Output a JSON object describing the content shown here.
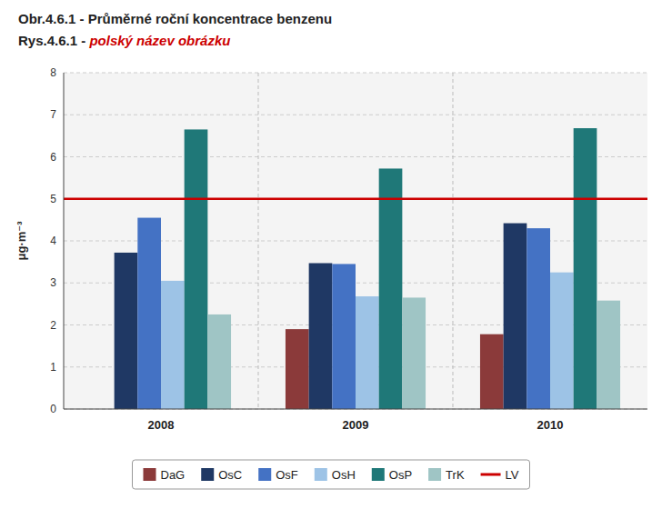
{
  "chart_data": {
    "type": "bar",
    "title": "Obr.4.6.1 - Průměrné roční koncentrace benzenu",
    "subtitle": [
      "Rys.4.6.1 - ",
      "polský název obrázku"
    ],
    "categories": [
      "2008",
      "2009",
      "2010"
    ],
    "series": [
      {
        "name": "DaG",
        "color": "#8B3A3A",
        "values": [
          0.0,
          1.9,
          1.78
        ]
      },
      {
        "name": "OsC",
        "color": "#1F3864",
        "values": [
          3.72,
          3.47,
          4.42
        ]
      },
      {
        "name": "OsF",
        "color": "#4472C4",
        "values": [
          4.55,
          3.45,
          4.3
        ]
      },
      {
        "name": "OsH",
        "color": "#9DC3E6",
        "values": [
          3.05,
          2.68,
          3.25
        ]
      },
      {
        "name": "OsP",
        "color": "#1F7878",
        "values": [
          6.65,
          5.72,
          6.68
        ]
      },
      {
        "name": "TrK",
        "color": "#9FC5C5",
        "values": [
          2.25,
          2.65,
          2.58
        ]
      }
    ],
    "reference_lines": [
      {
        "name": "LV",
        "value": 5.0,
        "color": "#CC0000"
      }
    ],
    "ylabel": "μg·m⁻³",
    "ylim": [
      0,
      8
    ],
    "yticks": [
      0,
      1,
      2,
      3,
      4,
      5,
      6,
      7,
      8
    ],
    "grid": true,
    "legend": "bottom"
  }
}
